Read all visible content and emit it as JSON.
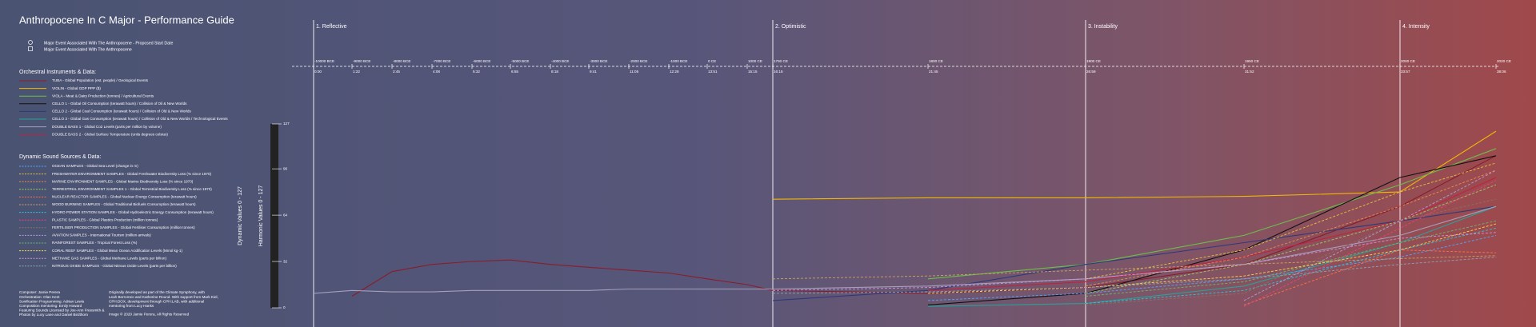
{
  "chart_data": {
    "type": "line",
    "title": "Anthropocene In C Major - Performance Guide",
    "markers": [
      "Major Event Associated With The Anthropocene - Proposed Start Date",
      "Major Event Associated With The Anthropocene"
    ],
    "orchestral_title": "Orchestral Instruments & Data:",
    "sound_title": "Dynamic Sound Sources & Data:",
    "y_label": "Dynamic Values 0 - 127",
    "y2_label": "Harmonic Values 0 - 127",
    "sections": [
      "1. Reflective",
      "2. Optimistic",
      "3. Instability",
      "4. Intensity"
    ],
    "categories": [
      "-10000 BCE",
      "-9000 BCE",
      "-8000 BCE",
      "-7000 BCE",
      "-6000 BCE",
      "-5000 BCE",
      "-4000 BCE",
      "-3000 BCE",
      "-2000 BCE",
      "-1000 BCE",
      "0 CE",
      "1000 CE",
      "1750 CE",
      "1800 CE",
      "1900 CE",
      "1950 CE",
      "2000 CE",
      "2020 CE"
    ],
    "timecodes": [
      "0:00",
      "1:22",
      "2:45",
      "4:08",
      "5:32",
      "6:55",
      "8:18",
      "9:41",
      "11:05",
      "12:28",
      "13:51",
      "15:15",
      "16:15",
      "21:45",
      "26:59",
      "31:52",
      "33:57",
      "38:06"
    ],
    "ylim": [
      0,
      127
    ],
    "yticks": [
      0,
      32,
      64,
      96,
      127
    ],
    "series": [
      {
        "name": "TUBA - Global Population (est. people) / Geological Events",
        "color": "#8a1c2c",
        "dashed": false,
        "values": [
          null,
          8,
          25,
          30,
          32,
          33,
          30,
          28,
          26,
          24,
          20,
          16,
          12,
          10,
          14,
          30,
          70,
          105
        ]
      },
      {
        "name": "VIOLIN - Global GDP PPP ($)",
        "color": "#f2b705",
        "dashed": false,
        "values": [
          null,
          null,
          null,
          null,
          null,
          null,
          null,
          null,
          null,
          null,
          null,
          null,
          75,
          76,
          76,
          77,
          80,
          122
        ]
      },
      {
        "name": "VIOLA - Meat & Dairy Production (tonnes) / Agricultural Events",
        "color": "#6abf4b",
        "dashed": false,
        "values": [
          null,
          null,
          null,
          null,
          null,
          null,
          null,
          null,
          null,
          null,
          null,
          null,
          null,
          20,
          30,
          50,
          85,
          110
        ]
      },
      {
        "name": "CELLO 1 - Global Oil Consumption (terawatt hours) / Collision of Oil & New Worlds",
        "color": "#111111",
        "dashed": false,
        "values": [
          null,
          null,
          null,
          null,
          null,
          null,
          null,
          null,
          null,
          null,
          null,
          null,
          null,
          2,
          10,
          40,
          90,
          105
        ]
      },
      {
        "name": "CELLO 2 - Global Coal Consumption (terawatt hours) / Collision of Old & New Worlds",
        "color": "#2c3a7a",
        "dashed": false,
        "values": [
          null,
          null,
          null,
          null,
          null,
          null,
          null,
          null,
          null,
          null,
          null,
          null,
          5,
          12,
          30,
          45,
          60,
          70
        ]
      },
      {
        "name": "CELLO 3 - Global Gas Consumption (terawatt hours) / Collision of Old & New Worlds / Technological Events",
        "color": "#2aa198",
        "dashed": false,
        "values": [
          null,
          null,
          null,
          null,
          null,
          null,
          null,
          null,
          null,
          null,
          null,
          null,
          null,
          1,
          3,
          15,
          45,
          70
        ]
      },
      {
        "name": "DOUBLE BASS 1 - Global Co2 Levels (parts per million by volume)",
        "color": "#a59fbc",
        "dashed": false,
        "values": [
          10,
          12,
          11,
          11,
          12,
          12,
          12,
          12,
          13,
          13,
          13,
          13,
          13,
          15,
          20,
          30,
          50,
          70
        ]
      },
      {
        "name": "DOUBLE BASS 2 - Global Surface Temperature (units degrees celsius)",
        "color": "#c0233f",
        "dashed": false,
        "values": [
          null,
          null,
          null,
          null,
          null,
          null,
          null,
          null,
          null,
          null,
          null,
          null,
          null,
          12,
          18,
          35,
          60,
          90
        ]
      },
      {
        "name": "OCEAN SAMPLES - Global Sea Level (change in m)",
        "color": "#4da6ff",
        "dashed": true,
        "values": [
          null,
          null,
          null,
          null,
          null,
          null,
          null,
          null,
          null,
          null,
          null,
          null,
          null,
          5,
          10,
          20,
          35,
          50
        ]
      },
      {
        "name": "FRESHWATER ENVIRONMENT SAMPLES - Global Freshwater Biodiversity Loss (% since 1970)",
        "color": "#e8c23a",
        "dashed": true,
        "values": [
          null,
          null,
          null,
          null,
          null,
          null,
          null,
          null,
          null,
          null,
          null,
          null,
          null,
          null,
          20,
          40,
          80,
          100
        ]
      },
      {
        "name": "MARINE ENVIRONMENT SAMPLES - Global Marine Biodiversity Loss (% since 1970)",
        "color": "#f08a4b",
        "dashed": true,
        "values": [
          null,
          null,
          null,
          null,
          null,
          null,
          null,
          null,
          null,
          null,
          null,
          null,
          null,
          null,
          15,
          35,
          70,
          95
        ]
      },
      {
        "name": "TERRESTRIAL ENVIRONMENT SAMPLES 1 - Global Terrestrial Biodiversity Loss (% since 1970)",
        "color": "#9ccc65",
        "dashed": true,
        "values": [
          null,
          null,
          null,
          null,
          null,
          null,
          null,
          null,
          null,
          null,
          null,
          null,
          null,
          null,
          10,
          30,
          60,
          85
        ]
      },
      {
        "name": "NUCLEAR REACTOR SAMPLES - Global Nuclear Energy Consumption (terawatt hours)",
        "color": "#ff7043",
        "dashed": true,
        "values": [
          null,
          null,
          null,
          null,
          null,
          null,
          null,
          null,
          null,
          null,
          null,
          null,
          null,
          null,
          null,
          2,
          40,
          38
        ]
      },
      {
        "name": "WOOD BURNING SAMPLES - Global Traditional Biofuels Consumption (terawatt hours)",
        "color": "#c8a165",
        "dashed": true,
        "values": [
          null,
          null,
          null,
          null,
          null,
          null,
          null,
          null,
          null,
          null,
          null,
          null,
          20,
          22,
          26,
          30,
          34,
          36
        ]
      },
      {
        "name": "HYDRO POWER STATION SAMPLES - Global Hydroelectric Energy Consumption (terawatt hours)",
        "color": "#26c6da",
        "dashed": true,
        "values": [
          null,
          null,
          null,
          null,
          null,
          null,
          null,
          null,
          null,
          null,
          null,
          null,
          null,
          null,
          3,
          12,
          40,
          55
        ]
      },
      {
        "name": "PLASTIC SAMPLES - Global Plastics Production (million tonnes)",
        "color": "#ec407a",
        "dashed": true,
        "values": [
          null,
          null,
          null,
          null,
          null,
          null,
          null,
          null,
          null,
          null,
          null,
          null,
          null,
          null,
          null,
          1,
          55,
          88
        ]
      },
      {
        "name": "FERTILISER PRODUCTION SAMPLES - Global Fertiliser Consumption (million tonnes)",
        "color": "#8d6e63",
        "dashed": true,
        "values": [
          null,
          null,
          null,
          null,
          null,
          null,
          null,
          null,
          null,
          null,
          null,
          null,
          null,
          null,
          2,
          10,
          60,
          75
        ]
      },
      {
        "name": "AVIATION SAMPLES - International Tourism (million arrivals)",
        "color": "#b39ddb",
        "dashed": true,
        "values": [
          null,
          null,
          null,
          null,
          null,
          null,
          null,
          null,
          null,
          null,
          null,
          null,
          null,
          null,
          null,
          5,
          60,
          95
        ]
      },
      {
        "name": "RAINFOREST SAMPLES - Tropical Forest Loss (%)",
        "color": "#66bb6a",
        "dashed": true,
        "values": [
          null,
          null,
          null,
          null,
          null,
          null,
          null,
          null,
          null,
          null,
          null,
          null,
          null,
          null,
          8,
          18,
          45,
          60
        ]
      },
      {
        "name": "CORAL REEF SAMPLES - Global Mean Ocean Acidification Levels (Mmol kg-1)",
        "color": "#ffd54f",
        "dashed": true,
        "values": [
          null,
          null,
          null,
          null,
          null,
          null,
          null,
          null,
          null,
          null,
          null,
          null,
          null,
          10,
          14,
          22,
          40,
          58
        ]
      },
      {
        "name": "METHANE GAS SAMPLES - Global Methane Levels (parts per billion)",
        "color": "#ce93d8",
        "dashed": true,
        "values": [
          null,
          null,
          null,
          null,
          null,
          null,
          null,
          null,
          null,
          null,
          null,
          null,
          12,
          14,
          20,
          30,
          48,
          52
        ]
      },
      {
        "name": "NITROUS OXIDE SAMPLES - Global Nitrous Oxide Levels (parts per billion)",
        "color": "#90a4ae",
        "dashed": true,
        "values": [
          null,
          null,
          null,
          null,
          null,
          null,
          null,
          null,
          null,
          null,
          null,
          null,
          10,
          11,
          14,
          20,
          30,
          35
        ]
      }
    ]
  },
  "credits": {
    "left": [
      "Composer: Jamie Perera",
      "Orchestration: Olan Kent",
      "Sonification Programming: Adrian Lewis",
      "Composition mentoring: Emily Howard",
      "Featuring Sounds Licensed by Joe-Ann Freesmith &",
      "Photos by Lucy Lane and Daniel Birdthorn"
    ],
    "right": [
      "Originally developed as part of the Climate Symphony, with",
      "Leah Borromeo and Katherine Round. With support from Mark Kiel,",
      "CPH:DOX, development through CPH:LAB, with additional",
      "mentoring from Lucy Hanks",
      "Image © 2020 Jamie Perera, All Rights Reserved"
    ]
  }
}
